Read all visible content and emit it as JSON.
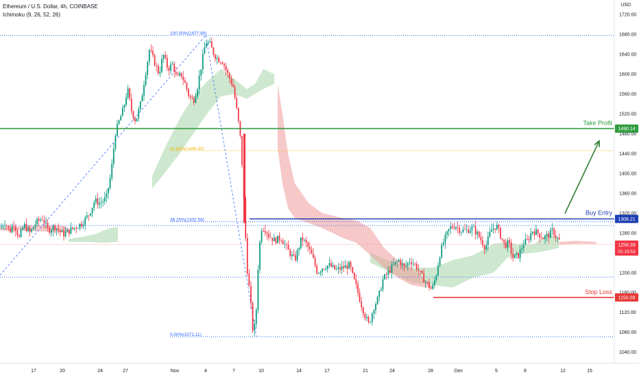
{
  "header": {
    "symbol": "Ethereum / U.S. Dollar, 4h, COINBASE",
    "indicator": "Ichimoku (9, 26, 52, 26)"
  },
  "axis": {
    "unit": "USD"
  },
  "colors": {
    "bull": "#089981",
    "bear": "#f23645",
    "take_profit": "#2e9c3f",
    "buy_entry": "#1e3fb4",
    "stop_loss": "#e53935",
    "fib_blue": "#2962ff",
    "fib_gold": "#f0b400",
    "cloud_green": "#a5d6a7",
    "cloud_red": "#ef9a9a",
    "arrow": "#2e7d32",
    "last_price": "#f23645"
  },
  "chart_data": {
    "type": "candlestick",
    "title": "Ethereum / U.S. Dollar, 4h, COINBASE",
    "ylabel": "USD",
    "ylim": [
      1030,
      1725
    ],
    "yticks": [
      1040,
      1080,
      1120,
      1160,
      1200,
      1240,
      1280,
      1320,
      1360,
      1400,
      1440,
      1480,
      1520,
      1560,
      1600,
      1640,
      1680,
      1720
    ],
    "xticks": [
      "17",
      "20",
      "24",
      "27",
      "Nov",
      "4",
      "7",
      "10",
      "14",
      "17",
      "21",
      "24",
      "28",
      "Dec",
      "5",
      "8",
      "12",
      "15"
    ],
    "grid": false,
    "levels": [
      {
        "label": "Take Profit",
        "value": 1490.14,
        "tag": "1490.14"
      },
      {
        "label": "Buy Entry",
        "value": 1308.21,
        "tag": "1308.21"
      },
      {
        "label": "Stop Loss",
        "value": 1150.09,
        "tag": "1150.09"
      }
    ],
    "fib_levels": [
      {
        "label": "100.00%(1677.90)",
        "value": 1677.9
      },
      {
        "label": "61.80%(1445.55)",
        "value": 1445.55
      },
      {
        "label": "38.20%(1302.56)",
        "value": 1302.56
      },
      {
        "label": "0.00%(1071.11)",
        "value": 1071.11
      }
    ],
    "extra_levels": [
      1295,
      1191,
      1257
    ],
    "last_price": {
      "value": 1256.39,
      "tag": "1256.39",
      "countdown": "01:15:53"
    },
    "close_path": [
      [
        0,
        1290
      ],
      [
        8,
        1302
      ],
      [
        14,
        1282
      ],
      [
        20,
        1300
      ],
      [
        28,
        1270
      ],
      [
        35,
        1296
      ],
      [
        44,
        1280
      ],
      [
        52,
        1300
      ],
      [
        62,
        1310
      ],
      [
        70,
        1285
      ],
      [
        80,
        1293
      ],
      [
        92,
        1277
      ],
      [
        104,
        1287
      ],
      [
        112,
        1293
      ],
      [
        120,
        1300
      ],
      [
        130,
        1318
      ],
      [
        138,
        1345
      ],
      [
        146,
        1340
      ],
      [
        155,
        1350
      ],
      [
        162,
        1400
      ],
      [
        168,
        1480
      ],
      [
        175,
        1510
      ],
      [
        180,
        1530
      ],
      [
        186,
        1570
      ],
      [
        192,
        1525
      ],
      [
        198,
        1505
      ],
      [
        205,
        1540
      ],
      [
        212,
        1600
      ],
      [
        218,
        1650
      ],
      [
        225,
        1625
      ],
      [
        232,
        1600
      ],
      [
        238,
        1640
      ],
      [
        245,
        1610
      ],
      [
        252,
        1620
      ],
      [
        258,
        1590
      ],
      [
        264,
        1600
      ],
      [
        270,
        1580
      ],
      [
        276,
        1555
      ],
      [
        282,
        1545
      ],
      [
        288,
        1575
      ],
      [
        294,
        1620
      ],
      [
        300,
        1665
      ],
      [
        306,
        1660
      ],
      [
        312,
        1640
      ],
      [
        318,
        1630
      ],
      [
        325,
        1625
      ],
      [
        332,
        1600
      ],
      [
        340,
        1575
      ],
      [
        346,
        1520
      ],
      [
        350,
        1480
      ],
      [
        354,
        1400
      ],
      [
        357,
        1300
      ],
      [
        361,
        1200
      ],
      [
        365,
        1150
      ],
      [
        369,
        1080
      ],
      [
        373,
        1100
      ],
      [
        377,
        1230
      ],
      [
        381,
        1290
      ],
      [
        386,
        1290
      ],
      [
        392,
        1275
      ],
      [
        400,
        1265
      ],
      [
        410,
        1270
      ],
      [
        420,
        1245
      ],
      [
        430,
        1225
      ],
      [
        440,
        1270
      ],
      [
        448,
        1255
      ],
      [
        456,
        1230
      ],
      [
        463,
        1200
      ],
      [
        470,
        1210
      ],
      [
        480,
        1215
      ],
      [
        490,
        1205
      ],
      [
        500,
        1210
      ],
      [
        510,
        1215
      ],
      [
        515,
        1190
      ],
      [
        520,
        1170
      ],
      [
        526,
        1140
      ],
      [
        532,
        1115
      ],
      [
        538,
        1095
      ],
      [
        545,
        1130
      ],
      [
        552,
        1150
      ],
      [
        558,
        1185
      ],
      [
        566,
        1200
      ],
      [
        574,
        1215
      ],
      [
        582,
        1225
      ],
      [
        590,
        1210
      ],
      [
        598,
        1225
      ],
      [
        606,
        1215
      ],
      [
        614,
        1195
      ],
      [
        622,
        1180
      ],
      [
        630,
        1165
      ],
      [
        636,
        1195
      ],
      [
        642,
        1240
      ],
      [
        648,
        1265
      ],
      [
        656,
        1290
      ],
      [
        664,
        1295
      ],
      [
        672,
        1285
      ],
      [
        680,
        1285
      ],
      [
        690,
        1290
      ],
      [
        700,
        1270
      ],
      [
        708,
        1250
      ],
      [
        716,
        1285
      ],
      [
        724,
        1295
      ],
      [
        730,
        1275
      ],
      [
        736,
        1255
      ],
      [
        742,
        1260
      ],
      [
        748,
        1230
      ],
      [
        756,
        1235
      ],
      [
        764,
        1260
      ],
      [
        770,
        1265
      ],
      [
        776,
        1285
      ],
      [
        784,
        1280
      ],
      [
        792,
        1270
      ],
      [
        800,
        1275
      ],
      [
        806,
        1285
      ],
      [
        812,
        1270
      ],
      [
        818,
        1262
      ]
    ],
    "ichimoku_cloud": {
      "green": [
        [
          [
            100,
            1268
          ],
          [
            120,
            1272
          ],
          [
            140,
            1278
          ],
          [
            160,
            1290
          ],
          [
            172,
            1292
          ],
          [
            172,
            1262
          ],
          [
            150,
            1260
          ],
          [
            130,
            1262
          ],
          [
            110,
            1262
          ],
          [
            100,
            1262
          ]
        ],
        [
          [
            222,
            1395
          ],
          [
            240,
            1450
          ],
          [
            262,
            1510
          ],
          [
            282,
            1555
          ],
          [
            302,
            1585
          ],
          [
            322,
            1610
          ],
          [
            342,
            1590
          ],
          [
            360,
            1570
          ],
          [
            372,
            1580
          ],
          [
            384,
            1610
          ],
          [
            400,
            1600
          ],
          [
            400,
            1580
          ],
          [
            384,
            1570
          ],
          [
            360,
            1550
          ],
          [
            342,
            1560
          ],
          [
            322,
            1555
          ],
          [
            302,
            1520
          ],
          [
            282,
            1480
          ],
          [
            262,
            1440
          ],
          [
            240,
            1400
          ],
          [
            222,
            1370
          ]
        ],
        [
          [
            540,
            1240
          ],
          [
            570,
            1222
          ],
          [
            600,
            1210
          ],
          [
            632,
            1210
          ],
          [
            660,
            1225
          ],
          [
            690,
            1235
          ],
          [
            720,
            1258
          ],
          [
            740,
            1262
          ],
          [
            760,
            1255
          ],
          [
            780,
            1258
          ],
          [
            800,
            1280
          ],
          [
            815,
            1270
          ],
          [
            815,
            1250
          ],
          [
            800,
            1245
          ],
          [
            780,
            1240
          ],
          [
            760,
            1238
          ],
          [
            740,
            1230
          ],
          [
            720,
            1200
          ],
          [
            690,
            1190
          ],
          [
            660,
            1170
          ],
          [
            632,
            1175
          ],
          [
            600,
            1180
          ],
          [
            570,
            1200
          ],
          [
            540,
            1220
          ]
        ]
      ],
      "red": [
        [
          [
            0,
            1290
          ],
          [
            30,
            1293
          ],
          [
            60,
            1296
          ],
          [
            90,
            1295
          ],
          [
            100,
            1290
          ],
          [
            100,
            1280
          ],
          [
            80,
            1282
          ],
          [
            60,
            1283
          ],
          [
            30,
            1285
          ],
          [
            0,
            1285
          ]
        ],
        [
          [
            405,
            1580
          ],
          [
            412,
            1520
          ],
          [
            420,
            1440
          ],
          [
            430,
            1380
          ],
          [
            450,
            1340
          ],
          [
            470,
            1320
          ],
          [
            500,
            1310
          ],
          [
            520,
            1305
          ],
          [
            540,
            1290
          ],
          [
            560,
            1250
          ],
          [
            580,
            1225
          ],
          [
            600,
            1210
          ],
          [
            620,
            1185
          ],
          [
            632,
            1170
          ],
          [
            620,
            1170
          ],
          [
            600,
            1175
          ],
          [
            580,
            1190
          ],
          [
            560,
            1210
          ],
          [
            540,
            1235
          ],
          [
            520,
            1260
          ],
          [
            500,
            1270
          ],
          [
            470,
            1290
          ],
          [
            450,
            1300
          ],
          [
            430,
            1310
          ],
          [
            420,
            1330
          ],
          [
            412,
            1380
          ],
          [
            405,
            1450
          ]
        ],
        [
          [
            815,
            1262
          ],
          [
            840,
            1264
          ],
          [
            870,
            1262
          ],
          [
            870,
            1258
          ],
          [
            840,
            1258
          ],
          [
            815,
            1256
          ]
        ]
      ]
    }
  }
}
